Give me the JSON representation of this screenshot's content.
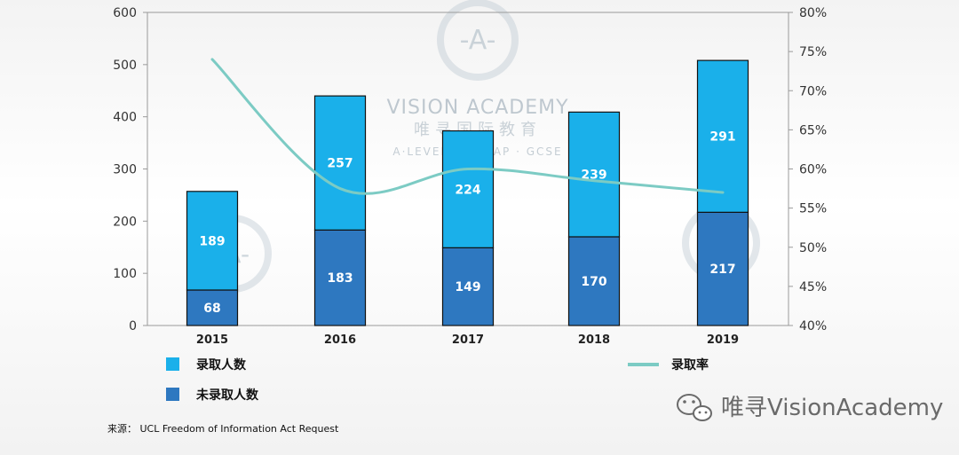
{
  "chart_data": {
    "type": "bar",
    "categories": [
      "2015",
      "2016",
      "2017",
      "2018",
      "2019"
    ],
    "series": [
      {
        "name": "录取人数",
        "values": [
          189,
          257,
          224,
          239,
          291
        ],
        "color": "#1ab0ea"
      },
      {
        "name": "未录取人数",
        "values": [
          68,
          183,
          149,
          170,
          217
        ],
        "color": "#2e78c0"
      }
    ],
    "line_series": {
      "name": "录取率",
      "values": [
        74,
        57.5,
        60,
        58.5,
        57
      ],
      "color": "#7ccbc4"
    },
    "ylim": [
      0,
      600
    ],
    "yticks": [
      "0",
      "100",
      "200",
      "300",
      "400",
      "500",
      "600"
    ],
    "y2lim": [
      40,
      80
    ],
    "y2ticks": [
      "40%",
      "45%",
      "50%",
      "55%",
      "60%",
      "65%",
      "70%",
      "75%",
      "80%"
    ],
    "stacked": true,
    "legend_position": "bottom"
  },
  "source": "来源：  UCL Freedom of Information Act Request",
  "brand": "唯寻VisionAcademy",
  "watermark": {
    "title": "VISION ACADEMY",
    "subtitle": "唯寻国际教育",
    "tagline": "A·LEVEL · IB · AP · GCSE"
  }
}
